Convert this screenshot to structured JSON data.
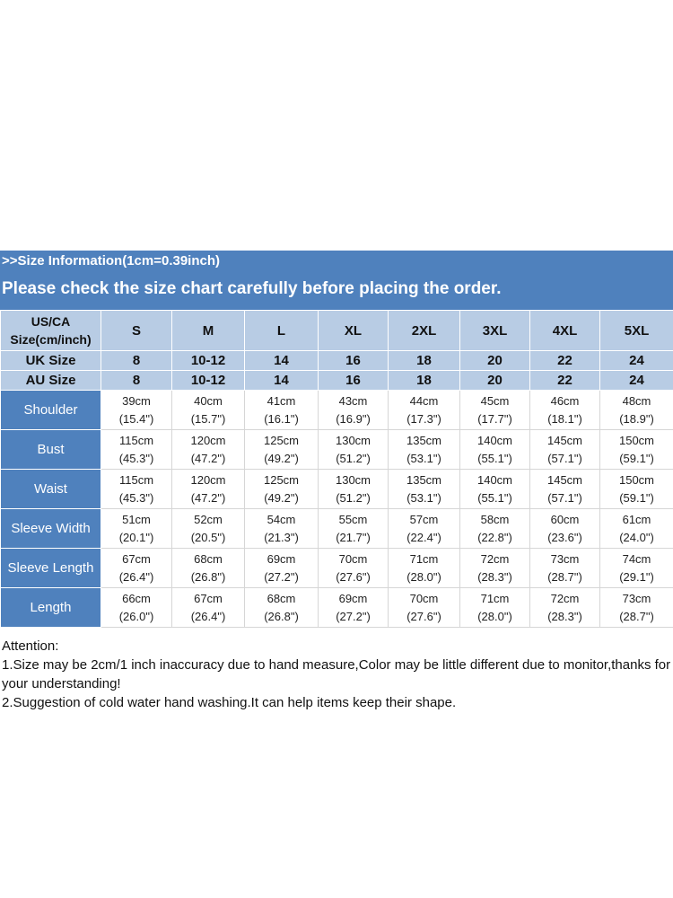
{
  "banner": {
    "line1": ">>Size Information(1cm=0.39inch)",
    "line2": "Please check the size chart carefully before placing the order."
  },
  "table": {
    "corner_label": [
      "US/CA",
      "Size(cm/inch)"
    ],
    "sizes": [
      "S",
      "M",
      "L",
      "XL",
      "2XL",
      "3XL",
      "4XL",
      "5XL"
    ],
    "conversion_rows": [
      {
        "label": "UK Size",
        "values": [
          "8",
          "10-12",
          "14",
          "16",
          "18",
          "20",
          "22",
          "24"
        ]
      },
      {
        "label": "AU Size",
        "values": [
          "8",
          "10-12",
          "14",
          "16",
          "18",
          "20",
          "22",
          "24"
        ]
      }
    ],
    "measure_rows": [
      {
        "label": "Shoulder",
        "cm": [
          "39cm",
          "40cm",
          "41cm",
          "43cm",
          "44cm",
          "45cm",
          "46cm",
          "48cm"
        ],
        "inch": [
          "(15.4\")",
          "(15.7\")",
          "(16.1\")",
          "(16.9\")",
          "(17.3\")",
          "(17.7\")",
          "(18.1\")",
          "(18.9\")"
        ]
      },
      {
        "label": "Bust",
        "cm": [
          "115cm",
          "120cm",
          "125cm",
          "130cm",
          "135cm",
          "140cm",
          "145cm",
          "150cm"
        ],
        "inch": [
          "(45.3\")",
          "(47.2\")",
          "(49.2\")",
          "(51.2\")",
          "(53.1\")",
          "(55.1\")",
          "(57.1\")",
          "(59.1\")"
        ]
      },
      {
        "label": "Waist",
        "cm": [
          "115cm",
          "120cm",
          "125cm",
          "130cm",
          "135cm",
          "140cm",
          "145cm",
          "150cm"
        ],
        "inch": [
          "(45.3\")",
          "(47.2\")",
          "(49.2\")",
          "(51.2\")",
          "(53.1\")",
          "(55.1\")",
          "(57.1\")",
          "(59.1\")"
        ]
      },
      {
        "label": "Sleeve Width",
        "cm": [
          "51cm",
          "52cm",
          "54cm",
          "55cm",
          "57cm",
          "58cm",
          "60cm",
          "61cm"
        ],
        "inch": [
          "(20.1\")",
          "(20.5\")",
          "(21.3\")",
          "(21.7\")",
          "(22.4\")",
          "(22.8\")",
          "(23.6\")",
          "(24.0\")"
        ]
      },
      {
        "label": "Sleeve Length",
        "cm": [
          "67cm",
          "68cm",
          "69cm",
          "70cm",
          "71cm",
          "72cm",
          "73cm",
          "74cm"
        ],
        "inch": [
          "(26.4\")",
          "(26.8\")",
          "(27.2\")",
          "(27.6\")",
          "(28.0\")",
          "(28.3\")",
          "(28.7\")",
          "(29.1\")"
        ]
      },
      {
        "label": "Length",
        "cm": [
          "66cm",
          "67cm",
          "68cm",
          "69cm",
          "70cm",
          "71cm",
          "72cm",
          "73cm"
        ],
        "inch": [
          "(26.0\")",
          "(26.4\")",
          "(26.8\")",
          "(27.2\")",
          "(27.6\")",
          "(28.0\")",
          "(28.3\")",
          "(28.7\")"
        ]
      }
    ]
  },
  "notes": {
    "heading": "Attention:",
    "item1": "1.Size may be 2cm/1 inch inaccuracy due to hand measure,Color may be little different due to monitor,thanks for your understanding!",
    "item2": "2.Suggestion of cold water hand washing.It can help items keep their shape."
  },
  "colors": {
    "banner": "#4f81bd",
    "header_cells": "#b8cce4",
    "label_cells": "#4f81bd"
  }
}
